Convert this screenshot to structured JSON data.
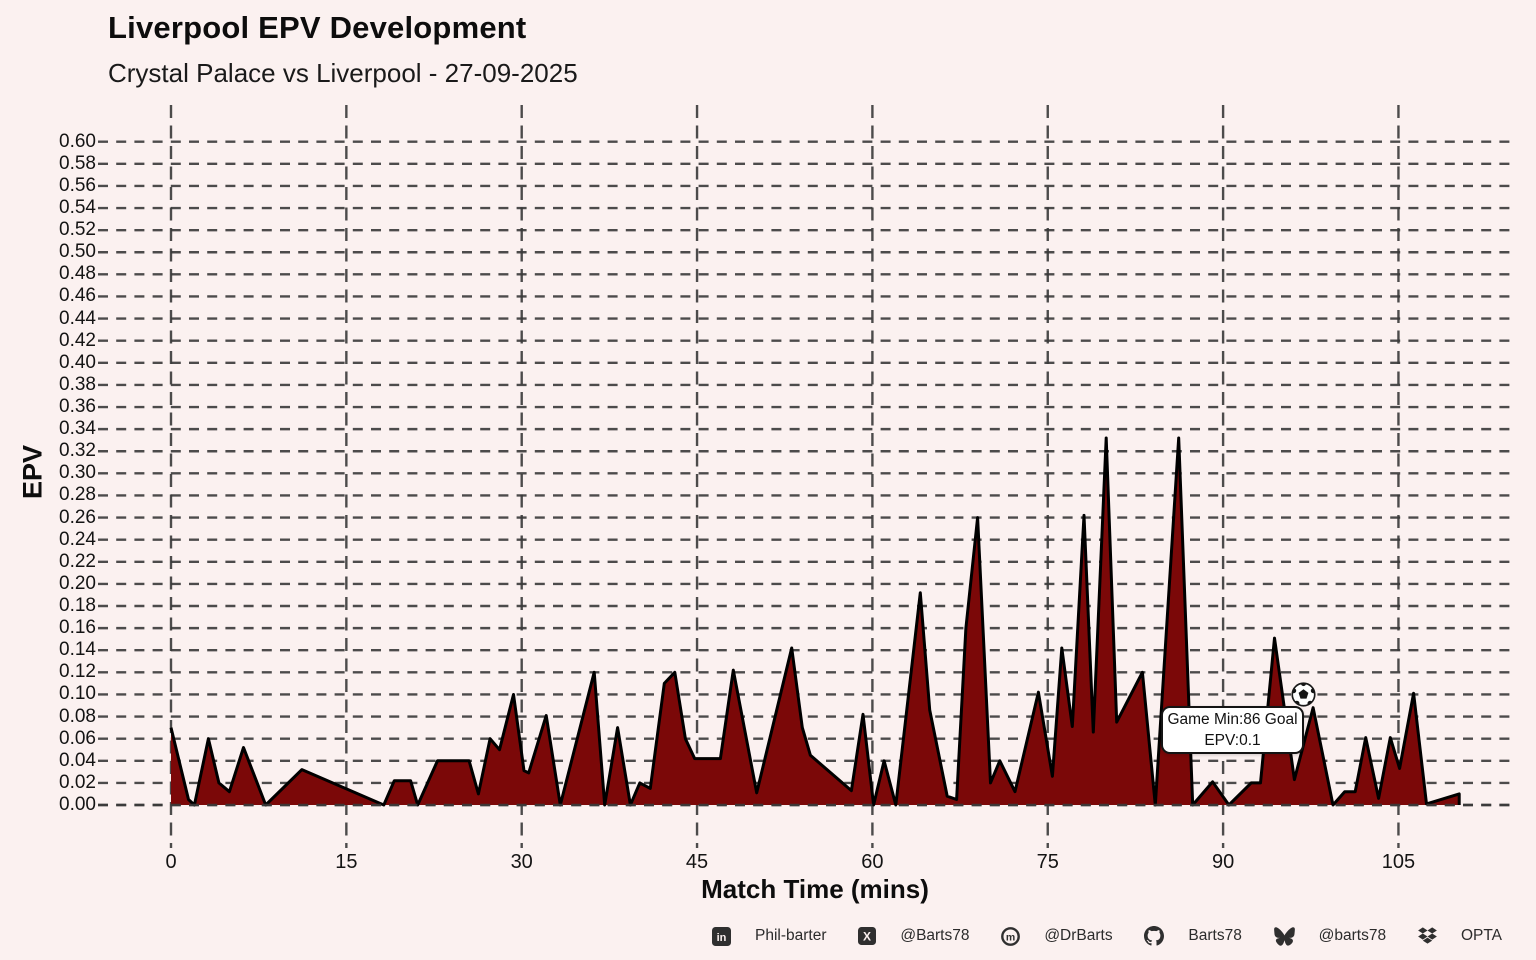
{
  "colors": {
    "background": "#fbf1f0",
    "area_fill": "#7b0808",
    "line": "#000000",
    "grid": "#3a3a3a"
  },
  "chart_data": {
    "type": "area",
    "title": "Liverpool EPV Development",
    "subtitle": "Crystal Palace vs Liverpool - 27-09-2025",
    "xlabel": "Match Time (mins)",
    "ylabel": "EPV",
    "xlim": [
      0,
      110.5
    ],
    "ylim": [
      0,
      0.6
    ],
    "grid": "dashed",
    "x_ticks": [
      0,
      15,
      30,
      45,
      60,
      75,
      90,
      105
    ],
    "y_tick_step": 0.02,
    "y_tick_labels": [
      "0.00",
      "0.02",
      "0.04",
      "0.06",
      "0.08",
      "0.10",
      "0.12",
      "0.14",
      "0.16",
      "0.18",
      "0.20",
      "0.22",
      "0.24",
      "0.26",
      "0.28",
      "0.30",
      "0.32",
      "0.34",
      "0.36",
      "0.38",
      "0.40",
      "0.42",
      "0.44",
      "0.46",
      "0.48",
      "0.50",
      "0.52",
      "0.54",
      "0.56",
      "0.58",
      "0.60"
    ],
    "series": [
      {
        "name": "EPV",
        "fill_color": "#7b0808",
        "line_color": "#000000",
        "points": [
          [
            0,
            0.07
          ],
          [
            1.5,
            0.005
          ],
          [
            2,
            0
          ],
          [
            3.2,
            0.06
          ],
          [
            4.1,
            0.02
          ],
          [
            5,
            0.012
          ],
          [
            6.2,
            0.052
          ],
          [
            8.1,
            0
          ],
          [
            11.2,
            0.032
          ],
          [
            18.2,
            0
          ],
          [
            19.1,
            0.022
          ],
          [
            20.5,
            0.022
          ],
          [
            21.1,
            0
          ],
          [
            22.8,
            0.04
          ],
          [
            25.5,
            0.04
          ],
          [
            26.3,
            0.01
          ],
          [
            27.3,
            0.06
          ],
          [
            28.1,
            0.05
          ],
          [
            29.3,
            0.1
          ],
          [
            30.2,
            0.031
          ],
          [
            30.6,
            0.029
          ],
          [
            32.1,
            0.081
          ],
          [
            33.3,
            0
          ],
          [
            36.2,
            0.12
          ],
          [
            37.1,
            0
          ],
          [
            38.2,
            0.07
          ],
          [
            39.3,
            0
          ],
          [
            40.1,
            0.02
          ],
          [
            41,
            0.015
          ],
          [
            42.2,
            0.11
          ],
          [
            43.1,
            0.12
          ],
          [
            44,
            0.06
          ],
          [
            44.8,
            0.042
          ],
          [
            45.3,
            0.042
          ],
          [
            47,
            0.042
          ],
          [
            48.1,
            0.122
          ],
          [
            50.1,
            0.011
          ],
          [
            53.1,
            0.142
          ],
          [
            54,
            0.07
          ],
          [
            54.7,
            0.045
          ],
          [
            58.2,
            0.013
          ],
          [
            59.2,
            0.082
          ],
          [
            60.1,
            0
          ],
          [
            61,
            0.04
          ],
          [
            62,
            0
          ],
          [
            64.1,
            0.192
          ],
          [
            64.9,
            0.086
          ],
          [
            66.4,
            0.008
          ],
          [
            67.2,
            0.005
          ],
          [
            68,
            0.16
          ],
          [
            69,
            0.26
          ],
          [
            70.1,
            0.02
          ],
          [
            70.9,
            0.04
          ],
          [
            72.2,
            0.012
          ],
          [
            74.2,
            0.102
          ],
          [
            75.4,
            0.026
          ],
          [
            76.2,
            0.142
          ],
          [
            77.1,
            0.071
          ],
          [
            78.1,
            0.262
          ],
          [
            78.9,
            0.066
          ],
          [
            80,
            0.332
          ],
          [
            80.9,
            0.075
          ],
          [
            83.1,
            0.12
          ],
          [
            84.2,
            0
          ],
          [
            86.2,
            0.332
          ],
          [
            87.4,
            0
          ],
          [
            89.1,
            0.021
          ],
          [
            90.5,
            0
          ],
          [
            92.4,
            0.02
          ],
          [
            93.2,
            0.02
          ],
          [
            94.4,
            0.151
          ],
          [
            96.1,
            0.023
          ],
          [
            97.7,
            0.088
          ],
          [
            99.4,
            0
          ],
          [
            100.4,
            0.012
          ],
          [
            101.3,
            0.012
          ],
          [
            102.2,
            0.061
          ],
          [
            103.3,
            0.006
          ],
          [
            104.3,
            0.061
          ],
          [
            105.1,
            0.033
          ],
          [
            106.3,
            0.101
          ],
          [
            107.4,
            0.001
          ],
          [
            110.2,
            0.01
          ]
        ]
      }
    ],
    "annotation": {
      "line1": "Game Min:86 Goal",
      "line2": "EPV:0.1",
      "marker": "soccer-ball"
    }
  },
  "footer": {
    "items": [
      {
        "icon": "linkedin-icon",
        "label": "Phil-barter"
      },
      {
        "icon": "x-icon",
        "label": "@Barts78"
      },
      {
        "icon": "mastodon-icon",
        "label": "@DrBarts"
      },
      {
        "icon": "github-icon",
        "label": "Barts78"
      },
      {
        "icon": "bluesky-icon",
        "label": "@barts78"
      },
      {
        "icon": "opta-icon",
        "label": "OPTA"
      }
    ]
  }
}
